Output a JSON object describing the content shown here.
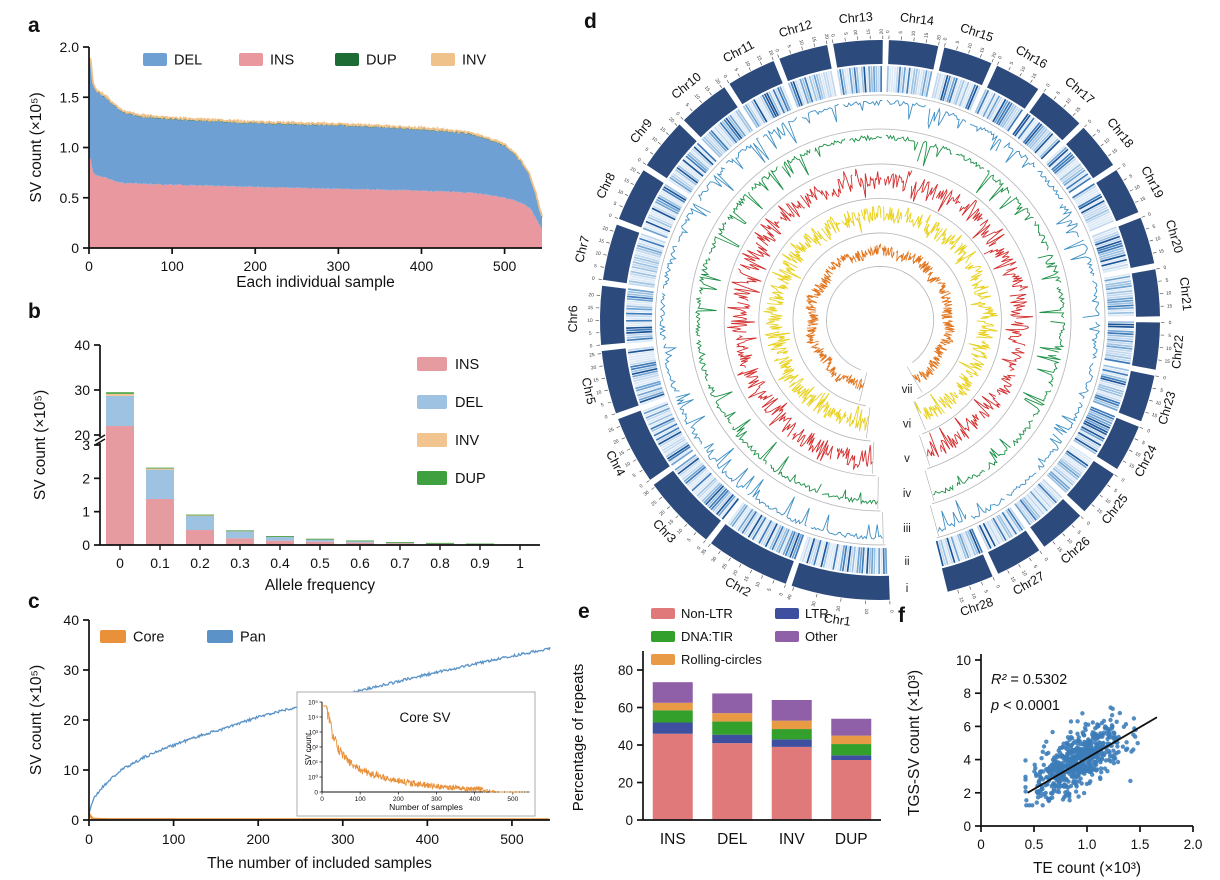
{
  "figure": {
    "background": "#ffffff",
    "panel_labels": {
      "a": "a",
      "b": "b",
      "c": "c",
      "d": "d",
      "e": "e",
      "f": "f"
    }
  },
  "chart_data": {
    "a": {
      "type": "area",
      "stacked": true,
      "xlabel": "Each individual sample",
      "ylabel": "SV count (×10⁵)",
      "xlim": [
        0,
        545
      ],
      "ylim": [
        0,
        2.0
      ],
      "xticks": [
        "0",
        "100",
        "200",
        "300",
        "400",
        "500"
      ],
      "xtick_values": [
        0,
        100,
        200,
        300,
        400,
        500
      ],
      "yticks": [
        "0",
        "0.5",
        "1.0",
        "1.5",
        "2.0"
      ],
      "ytick_values": [
        0,
        0.5,
        1.0,
        1.5,
        2.0
      ],
      "legend": [
        {
          "label": "DEL",
          "color": "#6fa0d4"
        },
        {
          "label": "INS",
          "color": "#e8989e"
        },
        {
          "label": "DUP",
          "color": "#1d6b35"
        },
        {
          "label": "INV",
          "color": "#eec28a"
        }
      ],
      "series_keypoints": {
        "x": [
          0,
          2,
          5,
          10,
          20,
          30,
          40,
          60,
          100,
          150,
          200,
          250,
          300,
          350,
          400,
          430,
          460,
          480,
          500,
          510,
          520,
          530,
          538,
          545
        ],
        "ins": [
          0.91,
          0.88,
          0.75,
          0.72,
          0.7,
          0.67,
          0.65,
          0.64,
          0.63,
          0.62,
          0.61,
          0.6,
          0.59,
          0.58,
          0.57,
          0.56,
          0.55,
          0.53,
          0.5,
          0.48,
          0.45,
          0.4,
          0.3,
          0.18
        ],
        "total": [
          1.88,
          1.86,
          1.62,
          1.55,
          1.5,
          1.42,
          1.35,
          1.31,
          1.28,
          1.26,
          1.24,
          1.23,
          1.22,
          1.2,
          1.18,
          1.16,
          1.13,
          1.08,
          1.02,
          0.95,
          0.85,
          0.72,
          0.52,
          0.3
        ]
      },
      "inv_band": 0.013
    },
    "b": {
      "type": "stacked-bar",
      "broken_axis": true,
      "xlabel": "Allele frequency",
      "ylabel": "SV count (×10⁵)",
      "categories": [
        "0",
        "0.1",
        "0.2",
        "0.3",
        "0.4",
        "0.5",
        "0.6",
        "0.7",
        "0.8",
        "0.9",
        "1"
      ],
      "axis_break": {
        "lower_range": [
          0,
          3
        ],
        "upper_range": [
          20,
          40
        ],
        "lower_ticks": [
          "0",
          "1",
          "2",
          "3"
        ],
        "upper_ticks": [
          "20",
          "30",
          "40"
        ]
      },
      "series": [
        {
          "name": "INS",
          "color": "#e59ba0",
          "values": [
            22.0,
            1.38,
            0.45,
            0.2,
            0.13,
            0.1,
            0.07,
            0.05,
            0.03,
            0.02,
            0.01
          ]
        },
        {
          "name": "DEL",
          "color": "#9ec3e2",
          "values": [
            6.7,
            0.88,
            0.42,
            0.22,
            0.13,
            0.08,
            0.06,
            0.03,
            0.03,
            0.02,
            0.01
          ]
        },
        {
          "name": "INV",
          "color": "#f2c490",
          "values": [
            0.45,
            0.04,
            0.03,
            0.012,
            0.006,
            0.004,
            0.003,
            0.002,
            0.002,
            0.001,
            0.001
          ]
        },
        {
          "name": "DUP",
          "color": "#3fa03f",
          "values": [
            0.35,
            0.02,
            0.012,
            0.006,
            0.004,
            0.003,
            0.002,
            0.001,
            0.001,
            0.001,
            0.0
          ]
        }
      ],
      "legend_order": [
        "INS",
        "DEL",
        "INV",
        "DUP"
      ]
    },
    "c": {
      "type": "line",
      "xlabel": "The number of included samples",
      "ylabel": "SV count (×10⁵)",
      "xlim": [
        0,
        545
      ],
      "ylim": [
        0,
        40
      ],
      "xticks": [
        "0",
        "100",
        "200",
        "300",
        "400",
        "500"
      ],
      "xtick_values": [
        0,
        100,
        200,
        300,
        400,
        500
      ],
      "yticks": [
        "0",
        "10",
        "20",
        "30",
        "40"
      ],
      "ytick_values": [
        0,
        10,
        20,
        30,
        40
      ],
      "legend": [
        {
          "label": "Core",
          "color": "#e8913a"
        },
        {
          "label": "Pan",
          "color": "#5b93c8"
        }
      ],
      "pan_keypoints": {
        "x": [
          0,
          3,
          6,
          10,
          15,
          25,
          40,
          60,
          80,
          100,
          130,
          160,
          200,
          240,
          280,
          320,
          360,
          400,
          440,
          480,
          510,
          545
        ],
        "y": [
          1.3,
          3.2,
          4.3,
          5.3,
          6.4,
          8.1,
          10.2,
          12.1,
          13.7,
          15.0,
          16.8,
          18.3,
          20.6,
          22.4,
          24.2,
          25.9,
          27.5,
          29.1,
          30.6,
          32.1,
          33.1,
          34.3
        ]
      },
      "core_keypoints": {
        "x": [
          0,
          2,
          4,
          8,
          20,
          100,
          545
        ],
        "y": [
          1.3,
          0.6,
          0.3,
          0.2,
          0.15,
          0.13,
          0.12
        ]
      },
      "inset": {
        "title": "Core SV",
        "xlabel": "Number of samples",
        "ylabel": "SV count",
        "yticks": [
          "10⁵",
          "10⁴",
          "10³",
          "10²",
          "10¹",
          "10⁰",
          "0"
        ],
        "xticks": [
          "0",
          "100",
          "200",
          "300",
          "400",
          "500"
        ],
        "color": "#e8913a"
      }
    },
    "d": {
      "type": "circos",
      "ring_color": "#2c4a7c",
      "separator_color": "#b4b4b4",
      "chromosomes": [
        {
          "name": "Chr1",
          "size": 21
        },
        {
          "name": "Chr2",
          "size": 18
        },
        {
          "name": "Chr3",
          "size": 16
        },
        {
          "name": "Chr4",
          "size": 14.5
        },
        {
          "name": "Chr5",
          "size": 13.5
        },
        {
          "name": "Chr6",
          "size": 12.5
        },
        {
          "name": "Chr7",
          "size": 12
        },
        {
          "name": "Chr8",
          "size": 11.5
        },
        {
          "name": "Chr9",
          "size": 11
        },
        {
          "name": "Chr10",
          "size": 11
        },
        {
          "name": "Chr11",
          "size": 10.5
        },
        {
          "name": "Chr12",
          "size": 10.5
        },
        {
          "name": "Chr13",
          "size": 10.5
        },
        {
          "name": "Chr14",
          "size": 10.5
        },
        {
          "name": "Chr15",
          "size": 10.5
        },
        {
          "name": "Chr16",
          "size": 10
        },
        {
          "name": "Chr17",
          "size": 10
        },
        {
          "name": "Chr18",
          "size": 10
        },
        {
          "name": "Chr19",
          "size": 10
        },
        {
          "name": "Chr20",
          "size": 10
        },
        {
          "name": "Chr21",
          "size": 10
        },
        {
          "name": "Chr22",
          "size": 10
        },
        {
          "name": "Chr23",
          "size": 10
        },
        {
          "name": "Chr24",
          "size": 10
        },
        {
          "name": "Chr25",
          "size": 10
        },
        {
          "name": "Chr26",
          "size": 10
        },
        {
          "name": "Chr27",
          "size": 10
        },
        {
          "name": "Chr28",
          "size": 10
        }
      ],
      "tracks": [
        {
          "id": "i",
          "label": "i",
          "kind": "ideogram",
          "color": "#2c4a7c",
          "r0": 256,
          "r1": 280
        },
        {
          "id": "ii",
          "label": "ii",
          "kind": "heatmap",
          "color": "#2f6db5",
          "r0": 228,
          "r1": 254
        },
        {
          "id": "iii",
          "label": "iii",
          "kind": "line",
          "style": "dips",
          "color": "#3e8fc4",
          "r0": 192,
          "r1": 224
        },
        {
          "id": "iv",
          "label": "iv",
          "kind": "line",
          "style": "dips",
          "color": "#1e9148",
          "r0": 157,
          "r1": 189
        },
        {
          "id": "v",
          "label": "v",
          "kind": "line",
          "style": "spiky",
          "color": "#d42e2e",
          "r0": 122,
          "r1": 154
        },
        {
          "id": "vi",
          "label": "vi",
          "kind": "line",
          "style": "spiky",
          "color": "#e8d11f",
          "r0": 88,
          "r1": 119
        },
        {
          "id": "vii",
          "label": "vii",
          "kind": "line",
          "style": "smooth",
          "color": "#e2751d",
          "r0": 54,
          "r1": 84
        }
      ]
    },
    "e": {
      "type": "stacked-bar",
      "ylabel": "Percentage of repeats",
      "categories": [
        "INS",
        "DEL",
        "INV",
        "DUP"
      ],
      "yticks": [
        "0",
        "20",
        "40",
        "60",
        "80"
      ],
      "ytick_values": [
        0,
        20,
        40,
        60,
        80
      ],
      "ymax": 88,
      "series": [
        {
          "name": "Non-LTR",
          "color": "#e07a7a",
          "values": [
            46,
            41,
            39,
            32
          ]
        },
        {
          "name": "LTR",
          "color": "#3d4f9e",
          "values": [
            6,
            4.5,
            4,
            2.5
          ]
        },
        {
          "name": "DNA:TIR",
          "color": "#33a02c",
          "values": [
            6.5,
            7,
            5.5,
            6
          ]
        },
        {
          "name": "Rolling-circles",
          "color": "#e89a45",
          "values": [
            4,
            4.5,
            4.5,
            4.5
          ]
        },
        {
          "name": "Other",
          "color": "#8f5fa8",
          "values": [
            11,
            10.5,
            11,
            9
          ]
        }
      ],
      "legend_columns": [
        [
          "Non-LTR",
          "DNA:TIR",
          "Rolling-circles"
        ],
        [
          "LTR",
          "Other"
        ]
      ]
    },
    "f": {
      "type": "scatter",
      "xlabel": "TE count (×10³)",
      "ylabel": "TGS-SV count (×10³)",
      "xlim": [
        0,
        2.0
      ],
      "ylim": [
        0,
        10
      ],
      "xticks": [
        "0",
        "0.5",
        "1.0",
        "1.5",
        "2.0"
      ],
      "xtick_values": [
        0,
        0.5,
        1.0,
        1.5,
        2.0
      ],
      "yticks": [
        "0",
        "2",
        "4",
        "6",
        "8",
        "10"
      ],
      "ytick_values": [
        0,
        2,
        4,
        6,
        8,
        10
      ],
      "point_color": "#3b7cb8",
      "n_points": 620,
      "annotations": [
        {
          "var": "R²",
          "rest": " = 0.5302"
        },
        {
          "var": "p",
          "rest": " < 0.0001"
        }
      ],
      "trend": {
        "x1": 0.44,
        "y1": 2.0,
        "x2": 1.66,
        "y2": 6.55,
        "color": "#111111"
      },
      "cluster": {
        "x_mean": 0.92,
        "x_sd": 0.21,
        "slope": 3.35,
        "intercept": 0.9,
        "resid_sd": 0.8,
        "x_min": 0.42,
        "x_max": 1.7,
        "y_min": 1.25,
        "y_max": 8.5
      }
    }
  }
}
